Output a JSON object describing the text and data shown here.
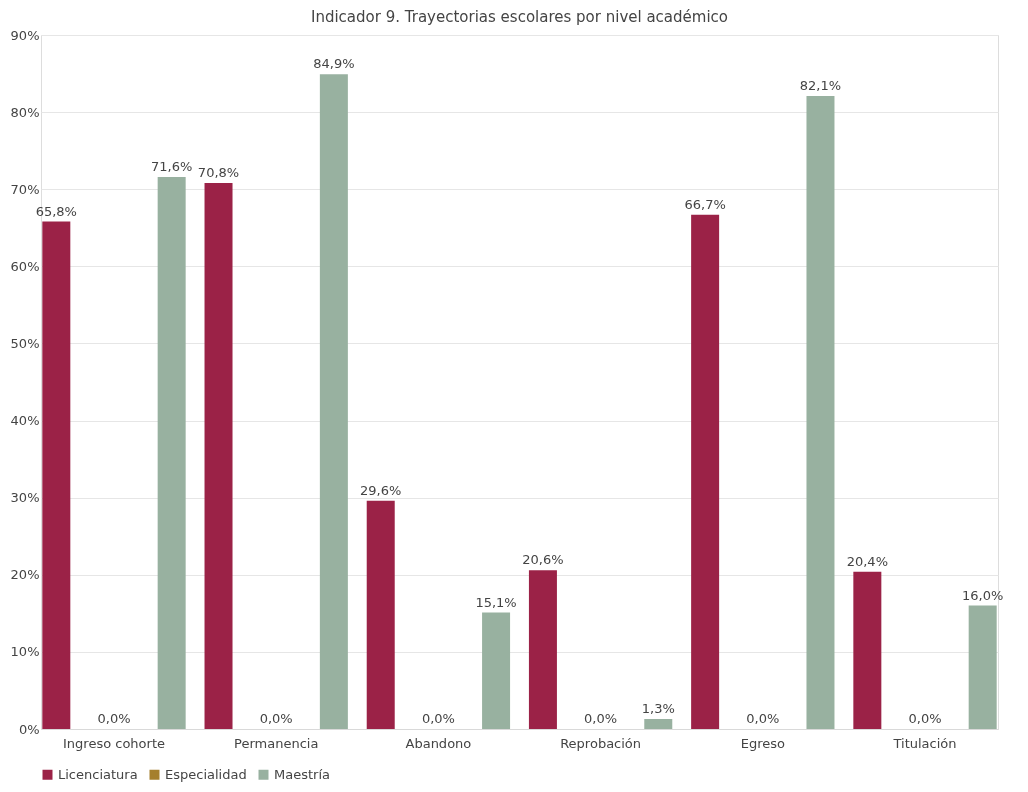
{
  "chart_data": {
    "type": "bar",
    "title": "Indicador 9. Trayectorias escolares por nivel académico",
    "categories": [
      "Ingreso cohorte",
      "Permanencia",
      "Abandono",
      "Reprobación",
      "Egreso",
      "Titulación"
    ],
    "series": [
      {
        "name": "Licenciatura",
        "color": "#9b2247",
        "values": [
          65.8,
          70.8,
          29.6,
          20.6,
          66.7,
          20.4
        ],
        "value_labels": [
          "65,8%",
          "70,8%",
          "29,6%",
          "20,6%",
          "66,7%",
          "20,4%"
        ]
      },
      {
        "name": "Especialidad",
        "color": "#a57f2c",
        "values": [
          0,
          0,
          0,
          0,
          0,
          0
        ],
        "value_labels": [
          "0,0%",
          "0,0%",
          "0,0%",
          "0,0%",
          "0,0%",
          "0,0%"
        ]
      },
      {
        "name": "Maestría",
        "color": "#98b1a0",
        "values": [
          71.6,
          84.9,
          15.1,
          1.3,
          82.1,
          16.0
        ],
        "value_labels": [
          "71,6%",
          "84,9%",
          "15,1%",
          "1,3%",
          "82,1%",
          "16,0%"
        ]
      }
    ],
    "ylim": [
      0,
      90
    ],
    "yticks": [
      {
        "value": 0,
        "label": "0%"
      },
      {
        "value": 10,
        "label": "10%"
      },
      {
        "value": 20,
        "label": "20%"
      },
      {
        "value": 30,
        "label": "30%"
      },
      {
        "value": 40,
        "label": "40%"
      },
      {
        "value": 50,
        "label": "50%"
      },
      {
        "value": 60,
        "label": "60%"
      },
      {
        "value": 70,
        "label": "70%"
      },
      {
        "value": 80,
        "label": "80%"
      },
      {
        "value": 90,
        "label": "90%"
      }
    ],
    "grid": "y",
    "legend": "bottom"
  }
}
